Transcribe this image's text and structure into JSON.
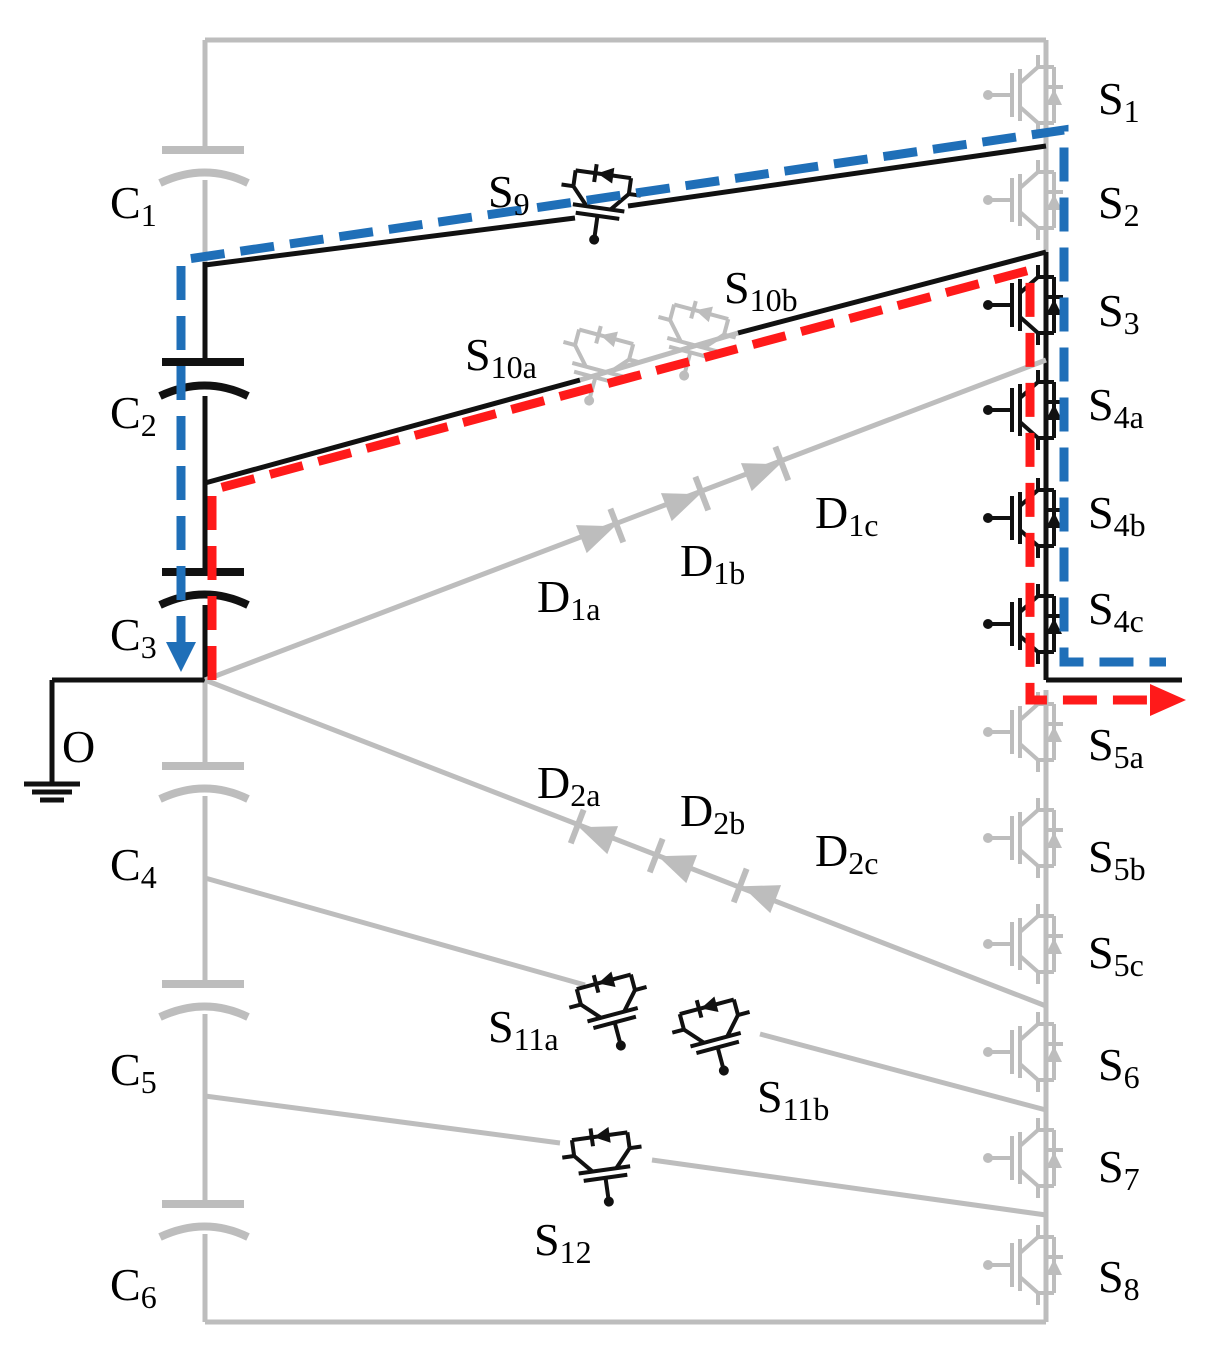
{
  "colors": {
    "active": "#111111",
    "inactive": "#bdbdbd",
    "path_blue": "#1f6fb8",
    "path_red": "#ff1a1a"
  },
  "labels": {
    "C1": {
      "main": "C",
      "sub": "1"
    },
    "C2": {
      "main": "C",
      "sub": "2"
    },
    "C3": {
      "main": "C",
      "sub": "3"
    },
    "C4": {
      "main": "C",
      "sub": "4"
    },
    "C5": {
      "main": "C",
      "sub": "5"
    },
    "C6": {
      "main": "C",
      "sub": "6"
    },
    "O": {
      "main": "O",
      "sub": ""
    },
    "S1": {
      "main": "S",
      "sub": "1"
    },
    "S2": {
      "main": "S",
      "sub": "2"
    },
    "S3": {
      "main": "S",
      "sub": "3"
    },
    "S4a": {
      "main": "S",
      "sub": "4a"
    },
    "S4b": {
      "main": "S",
      "sub": "4b"
    },
    "S4c": {
      "main": "S",
      "sub": "4c"
    },
    "S5a": {
      "main": "S",
      "sub": "5a"
    },
    "S5b": {
      "main": "S",
      "sub": "5b"
    },
    "S5c": {
      "main": "S",
      "sub": "5c"
    },
    "S6": {
      "main": "S",
      "sub": "6"
    },
    "S7": {
      "main": "S",
      "sub": "7"
    },
    "S8": {
      "main": "S",
      "sub": "8"
    },
    "S9": {
      "main": "S",
      "sub": "9"
    },
    "S10a": {
      "main": "S",
      "sub": "10a"
    },
    "S10b": {
      "main": "S",
      "sub": "10b"
    },
    "S11a": {
      "main": "S",
      "sub": "11a"
    },
    "S11b": {
      "main": "S",
      "sub": "11b"
    },
    "S12": {
      "main": "S",
      "sub": "12"
    },
    "D1a": {
      "main": "D",
      "sub": "1a"
    },
    "D1b": {
      "main": "D",
      "sub": "1b"
    },
    "D1c": {
      "main": "D",
      "sub": "1c"
    },
    "D2a": {
      "main": "D",
      "sub": "2a"
    },
    "D2b": {
      "main": "D",
      "sub": "2b"
    },
    "D2c": {
      "main": "D",
      "sub": "2c"
    }
  }
}
